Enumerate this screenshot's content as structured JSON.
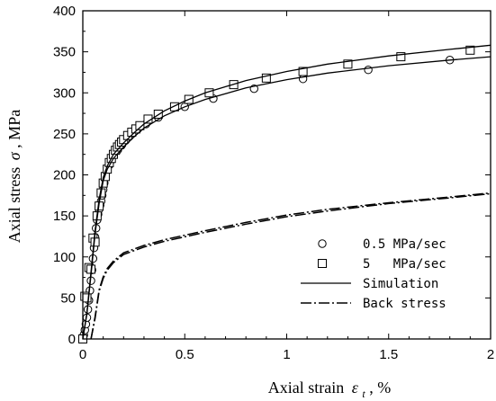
{
  "chart_data": {
    "type": "line",
    "title": "",
    "xlabel": {
      "text": "Axial strain",
      "symbol": "ε",
      "subscript": "t",
      "unit": ", %"
    },
    "ylabel": {
      "text": "Axial stress",
      "symbol": "σ",
      "unit": ", MPa"
    },
    "xlim": [
      0,
      2
    ],
    "ylim": [
      0,
      400
    ],
    "xticks": [
      0,
      0.5,
      1,
      1.5,
      2
    ],
    "xtick_labels": [
      "0",
      "0.5",
      "1",
      "1.5",
      "2"
    ],
    "yticks": [
      0,
      50,
      100,
      150,
      200,
      250,
      300,
      350,
      400
    ],
    "ytick_labels": [
      "0",
      "50",
      "100",
      "150",
      "200",
      "250",
      "300",
      "350",
      "400"
    ],
    "grid": false,
    "legend": {
      "placement": "bottom-right",
      "entries": [
        {
          "label": "0.5 MPa/sec",
          "marker": "circle"
        },
        {
          "label": "5   MPa/sec",
          "marker": "square"
        },
        {
          "label": "Simulation",
          "line": "solid"
        },
        {
          "label": "Back stress",
          "line": "dash-dot"
        }
      ]
    },
    "series": [
      {
        "name": "0.5 MPa/sec",
        "kind": "scatter",
        "marker": "circle",
        "x": [
          0,
          0.005,
          0.01,
          0.015,
          0.02,
          0.025,
          0.03,
          0.035,
          0.04,
          0.045,
          0.05,
          0.055,
          0.06,
          0.065,
          0.07,
          0.075,
          0.08,
          0.085,
          0.09,
          0.095,
          0.1,
          0.105,
          0.11,
          0.12,
          0.13,
          0.14,
          0.15,
          0.17,
          0.19,
          0.21,
          0.24,
          0.27,
          0.31,
          0.37,
          0.5,
          0.64,
          0.84,
          1.08,
          1.4,
          1.8
        ],
        "y": [
          0,
          5,
          11,
          18,
          26,
          36,
          47,
          59,
          71,
          84,
          98,
          111,
          124,
          135,
          145,
          152,
          158,
          163,
          168,
          175,
          182,
          190,
          198,
          206,
          212,
          218,
          224,
          230,
          236,
          242,
          250,
          256,
          262,
          270,
          283,
          293,
          305,
          317,
          328,
          340
        ]
      },
      {
        "name": "5   MPa/sec",
        "kind": "scatter",
        "marker": "square",
        "x": [
          0,
          0.01,
          0.02,
          0.03,
          0.04,
          0.05,
          0.06,
          0.07,
          0.08,
          0.09,
          0.1,
          0.11,
          0.12,
          0.13,
          0.14,
          0.15,
          0.16,
          0.17,
          0.18,
          0.19,
          0.2,
          0.22,
          0.24,
          0.26,
          0.28,
          0.32,
          0.37,
          0.45,
          0.52,
          0.62,
          0.74,
          0.9,
          1.08,
          1.3,
          1.56,
          1.9
        ],
        "y": [
          0,
          52,
          50,
          87,
          85,
          123,
          118,
          150,
          162,
          178,
          190,
          198,
          207,
          215,
          220,
          225,
          230,
          234,
          237,
          240,
          243,
          248,
          252,
          256,
          260,
          268,
          274,
          283,
          292,
          300,
          310,
          318,
          326,
          335,
          344,
          352
        ]
      },
      {
        "name": "Simulation",
        "kind": "line",
        "style": "solid",
        "x": [
          0,
          0.02,
          0.04,
          0.06,
          0.08,
          0.1,
          0.12,
          0.15,
          0.2,
          0.25,
          0.3,
          0.4,
          0.5,
          0.6,
          0.8,
          1.0,
          1.2,
          1.5,
          1.8,
          2.0
        ],
        "y": [
          0,
          30,
          78,
          128,
          165,
          193,
          207,
          220,
          234,
          246,
          257,
          272,
          283,
          292,
          306,
          316,
          324,
          333,
          340,
          344
        ]
      },
      {
        "name": "Simulation",
        "kind": "line",
        "style": "solid",
        "x": [
          0,
          0.02,
          0.04,
          0.06,
          0.08,
          0.1,
          0.12,
          0.15,
          0.2,
          0.25,
          0.3,
          0.4,
          0.5,
          0.6,
          0.8,
          1.0,
          1.2,
          1.5,
          1.8,
          2.0
        ],
        "y": [
          0,
          32,
          82,
          132,
          170,
          197,
          211,
          225,
          239,
          251,
          262,
          278,
          290,
          300,
          315,
          326,
          335,
          345,
          353,
          358
        ]
      },
      {
        "name": "Back stress",
        "kind": "line",
        "style": "dash-dot",
        "x": [
          0.04,
          0.06,
          0.08,
          0.1,
          0.12,
          0.15,
          0.2,
          0.3,
          0.4,
          0.6,
          0.8,
          1.0,
          1.2,
          1.5,
          1.8,
          2.0
        ],
        "y": [
          0,
          25,
          58,
          74,
          84,
          93,
          103,
          112,
          119,
          130,
          140,
          149,
          156,
          165,
          172,
          177
        ]
      },
      {
        "name": "Back stress",
        "kind": "line",
        "style": "dash-dot",
        "x": [
          0.04,
          0.06,
          0.08,
          0.1,
          0.12,
          0.15,
          0.2,
          0.3,
          0.4,
          0.6,
          0.8,
          1.0,
          1.2,
          1.5,
          1.8,
          2.0
        ],
        "y": [
          0,
          27,
          60,
          76,
          86,
          95,
          105,
          114,
          121,
          132,
          142,
          151,
          158,
          166,
          173,
          178
        ]
      }
    ]
  }
}
